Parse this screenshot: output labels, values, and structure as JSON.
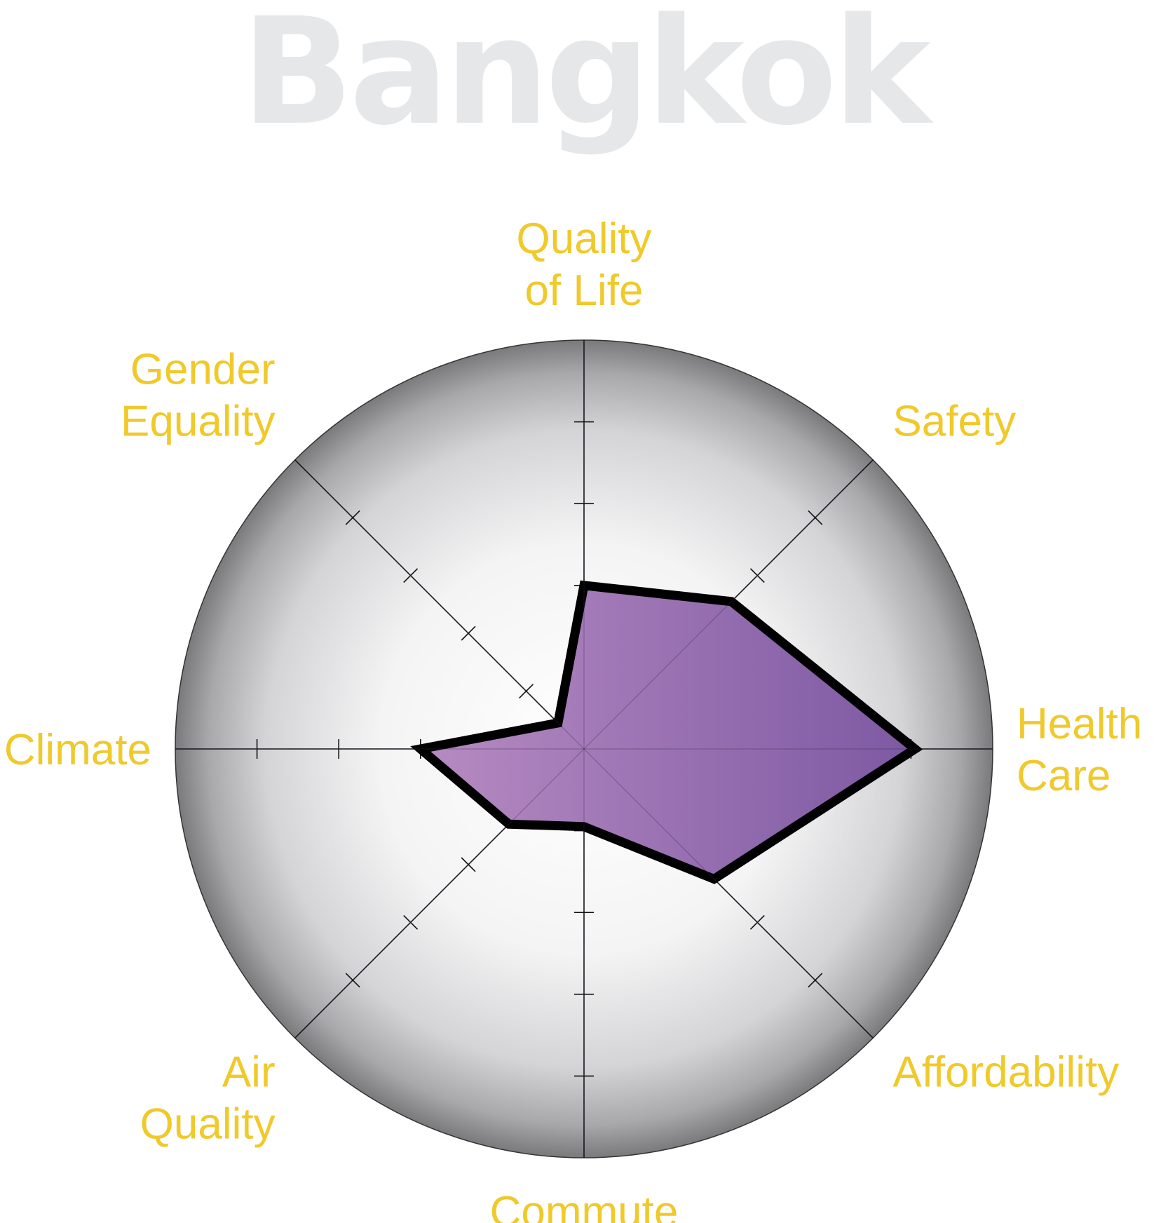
{
  "chart_data": {
    "type": "radar",
    "title": "Bangkok",
    "scale_max": 5,
    "ticks": 4,
    "categories": [
      {
        "name": "Quality of Life",
        "label_lines": [
          "Quality",
          "of Life"
        ]
      },
      {
        "name": "Safety",
        "label_lines": [
          "Safety"
        ]
      },
      {
        "name": "Health Care",
        "label_lines": [
          "Health",
          "Care"
        ]
      },
      {
        "name": "Affordability",
        "label_lines": [
          "Affordability"
        ]
      },
      {
        "name": "Commute",
        "label_lines": [
          "Commute"
        ]
      },
      {
        "name": "Air Quality",
        "label_lines": [
          "Air",
          "Quality"
        ]
      },
      {
        "name": "Climate",
        "label_lines": [
          "Climate"
        ]
      },
      {
        "name": "Gender Equality",
        "label_lines": [
          "Gender",
          "Equality"
        ]
      }
    ],
    "values": [
      2.0,
      2.55,
      4.05,
      2.25,
      0.95,
      1.3,
      2.0,
      0.45
    ],
    "colors": {
      "fill_start": "#b78bc2",
      "fill_end": "#7d59a3",
      "outline": "#000000",
      "label": "#f0c92b",
      "title": "#e6e7e9"
    },
    "grid": true
  }
}
